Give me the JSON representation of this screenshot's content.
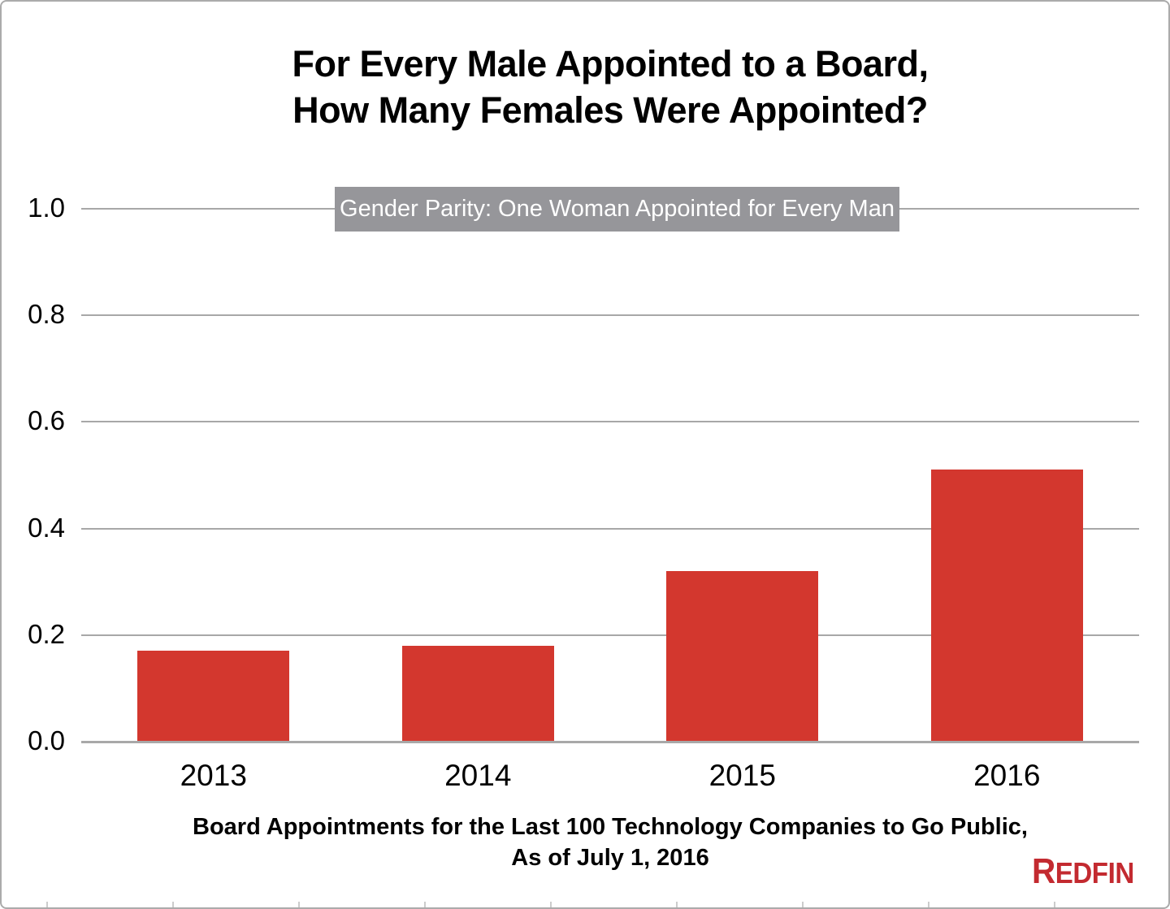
{
  "title": {
    "line1": "For Every Male Appointed to a Board,",
    "line2": "How Many Females Were Appointed?"
  },
  "annotation": {
    "text": "Gender Parity: One Woman Appointed for Every Man"
  },
  "footer": {
    "line1": "Board Appointments for the Last 100 Technology Companies to Go Public,",
    "line2": "As of July 1, 2016"
  },
  "logo": {
    "first": "R",
    "rest": "EDFIN"
  },
  "colors": {
    "bar": "#d3372e",
    "logo_red": "#c32a30",
    "gridline": "#a8a8a8",
    "axis_line": "#a8a8a8",
    "annotation_bg": "#96969a",
    "annotation_text": "#ffffff",
    "frame_tick": "#cccccc",
    "text": "#000000"
  },
  "chart_data": {
    "type": "bar",
    "title": "For Every Male Appointed to a Board, How Many Females Were Appointed?",
    "categories": [
      "2013",
      "2014",
      "2015",
      "2016"
    ],
    "values": [
      0.17,
      0.18,
      0.32,
      0.51
    ],
    "xlabel": "",
    "ylabel": "",
    "ylim": [
      0.0,
      1.0
    ],
    "yticks": [
      "0.0",
      "0.2",
      "0.4",
      "0.6",
      "0.8",
      "1.0"
    ],
    "grid": "horizontal gridlines on, at every 0.2",
    "legend": "none",
    "annotation": "Gender Parity: One Woman Appointed for Every Man (gray band at y = 1.0)",
    "source_note": "Board Appointments for the Last 100 Technology Companies to Go Public, As of July 1, 2016",
    "bar_color": "#d3372e"
  }
}
